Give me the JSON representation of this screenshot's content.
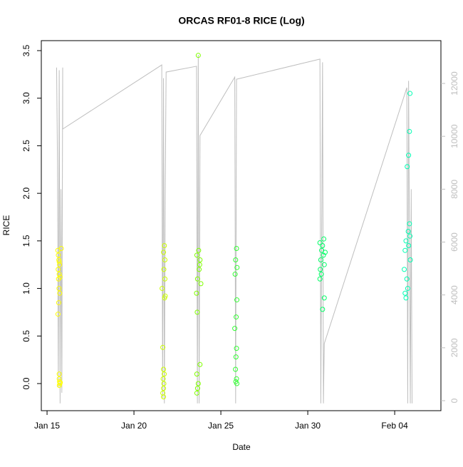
{
  "chart_data": {
    "type": "scatter",
    "title": "ORCAS RF01-8 RICE (Log)",
    "xlabel": "Date",
    "ylabel": "RICE",
    "xlim": [
      14.67,
      37.66
    ],
    "ylim": [
      -0.285,
      3.605
    ],
    "y2lim": [
      -378,
      13619
    ],
    "xticks": [
      {
        "value": 15,
        "label": "Jan 15"
      },
      {
        "value": 20,
        "label": "Jan 20"
      },
      {
        "value": 25,
        "label": "Jan 25"
      },
      {
        "value": 30,
        "label": "Jan 30"
      },
      {
        "value": 35,
        "label": "Feb 04"
      }
    ],
    "yticks": [
      {
        "value": 0,
        "label": "0.0"
      },
      0.5,
      {
        "value": 1,
        "label": "1.0"
      },
      1.5,
      {
        "value": 2,
        "label": "2.0"
      },
      2.5,
      {
        "value": 3,
        "label": "3.0"
      },
      3.5
    ],
    "y2ticks": [
      0,
      2000,
      4000,
      6000,
      8000,
      10000,
      12000
    ],
    "series": [
      {
        "color": "#ffff00",
        "x": [
          15.62,
          15.65,
          15.68,
          15.7,
          15.72,
          15.64,
          15.7,
          15.75,
          15.66,
          15.69,
          15.73,
          15.67,
          15.63,
          15.7,
          15.72,
          15.74,
          15.71,
          15.76,
          15.7,
          15.82
        ],
        "values": [
          1.4,
          1.35,
          1.3,
          1.28,
          1.25,
          1.2,
          1.15,
          1.12,
          1.1,
          1.0,
          0.95,
          0.85,
          0.73,
          0.05,
          0.02,
          0.0,
          -0.02,
          0.01,
          0.1,
          1.42
        ]
      },
      {
        "color": "#ccff00",
        "x": [
          21.75,
          21.7,
          21.78,
          21.72,
          21.62,
          21.8,
          21.76,
          21.66,
          21.7,
          21.74,
          21.68,
          21.72,
          21.7,
          21.66,
          21.7,
          21.78
        ],
        "values": [
          1.45,
          1.38,
          1.3,
          1.2,
          1.0,
          0.92,
          0.9,
          0.38,
          0.15,
          0.1,
          0.05,
          0.0,
          -0.05,
          -0.1,
          -0.14,
          1.1
        ]
      },
      {
        "color": "#80ff00",
        "x": [
          23.7,
          23.72,
          23.62,
          23.8,
          23.75,
          23.66,
          23.85,
          23.6,
          23.64,
          23.8,
          23.62,
          23.7,
          23.66,
          23.62,
          23.78
        ],
        "values": [
          3.45,
          1.4,
          1.35,
          1.3,
          1.2,
          1.1,
          1.05,
          0.95,
          0.75,
          0.2,
          0.1,
          0.0,
          -0.05,
          -0.1,
          1.25
        ]
      },
      {
        "color": "#33ff33",
        "x": [
          25.9,
          25.85,
          25.93,
          25.82,
          25.92,
          25.88,
          25.8,
          25.9,
          25.87,
          25.84,
          25.9,
          25.86,
          25.92
        ],
        "values": [
          1.42,
          1.3,
          1.22,
          1.15,
          0.88,
          0.7,
          0.58,
          0.37,
          0.28,
          0.15,
          0.05,
          0.02,
          0.0
        ]
      },
      {
        "color": "#00ff66",
        "x": [
          30.92,
          30.85,
          30.8,
          30.9,
          30.75,
          30.95,
          30.72,
          30.78,
          30.7,
          30.95,
          30.85,
          30.7,
          31.0
        ],
        "values": [
          1.52,
          1.45,
          1.4,
          1.35,
          1.3,
          1.25,
          1.2,
          1.15,
          1.1,
          0.9,
          0.78,
          1.48,
          1.38
        ]
      },
      {
        "color": "#00ffb3",
        "x": [
          35.88,
          35.85,
          35.8,
          35.72,
          35.85,
          35.78,
          35.88,
          35.65,
          35.8,
          35.6,
          35.9,
          35.55,
          35.7,
          35.75,
          35.6,
          35.65
        ],
        "values": [
          3.05,
          2.65,
          2.4,
          2.28,
          1.68,
          1.6,
          1.55,
          1.5,
          1.45,
          1.4,
          1.3,
          1.2,
          1.1,
          1.0,
          0.95,
          0.9
        ]
      }
    ],
    "line": {
      "color": "#bebebe",
      "axis": "y2",
      "x": [
        15.55,
        15.6,
        15.65,
        15.7,
        15.75,
        15.8,
        15.85,
        15.9,
        15.9,
        21.6,
        21.65,
        21.7,
        21.75,
        21.8,
        21.85,
        23.6,
        23.65,
        23.7,
        23.75,
        23.8,
        25.8,
        25.85,
        25.9,
        30.7,
        30.75,
        30.85,
        30.9,
        30.95,
        35.7,
        35.75,
        35.8,
        35.9,
        35.95,
        36.0
      ],
      "values": [
        12600,
        9000,
        500,
        12500,
        -100,
        8000,
        300,
        12600,
        10275,
        12700,
        100,
        12200,
        -100,
        8000,
        12430,
        12650,
        -100,
        13080,
        -100,
        10030,
        12240,
        -100,
        12160,
        12920,
        -100,
        12800,
        -100,
        2160,
        11840,
        -100,
        12100,
        -100,
        8000,
        -100
      ]
    }
  }
}
